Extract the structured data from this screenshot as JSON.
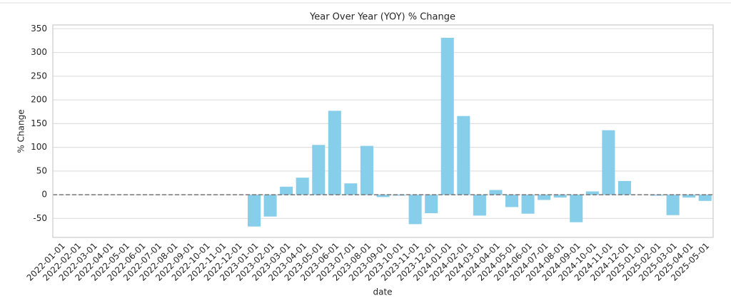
{
  "chart_data": {
    "type": "bar",
    "title": "Year Over Year (YOY) % Change",
    "x_label": "date",
    "y_label": "% Change",
    "categories": [
      "2022-01-01",
      "2022-02-01",
      "2022-03-01",
      "2022-04-01",
      "2022-05-01",
      "2022-06-01",
      "2022-07-01",
      "2022-08-01",
      "2022-09-01",
      "2022-10-01",
      "2022-11-01",
      "2022-12-01",
      "2023-01-01",
      "2023-02-01",
      "2023-03-01",
      "2023-04-01",
      "2023-05-01",
      "2023-06-01",
      "2023-07-01",
      "2023-08-01",
      "2023-09-01",
      "2023-10-01",
      "2023-11-01",
      "2023-12-01",
      "2024-01-01",
      "2024-02-01",
      "2024-03-01",
      "2024-04-01",
      "2024-05-01",
      "2024-06-01",
      "2024-07-01",
      "2024-08-01",
      "2024-09-01",
      "2024-10-01",
      "2024-11-01",
      "2024-12-01",
      "2025-01-01",
      "2025-02-01",
      "2025-03-01",
      "2025-04-01",
      "2025-05-01"
    ],
    "values": [
      null,
      null,
      null,
      null,
      null,
      null,
      null,
      null,
      null,
      null,
      null,
      null,
      -67,
      -46,
      17,
      36,
      105,
      177,
      24,
      103,
      -5,
      -2,
      -62,
      -39,
      331,
      166,
      -44,
      10,
      -26,
      -40,
      -11,
      -6,
      -58,
      7,
      136,
      29,
      null,
      -2,
      -43,
      -6,
      -13
    ],
    "color": "#87ceeb",
    "ylim": [
      -90,
      358
    ],
    "yticks": [
      -50,
      0,
      50,
      100,
      150,
      200,
      250,
      300,
      350
    ],
    "grid": true
  }
}
